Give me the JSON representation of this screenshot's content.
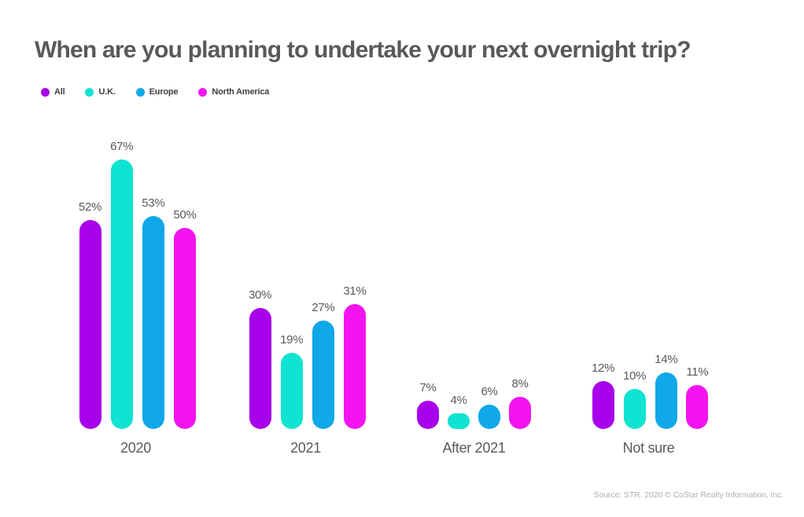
{
  "title": "When are you planning to undertake your next overnight trip?",
  "source": "Source: STR. 2020 © CoStar Realty Information, Inc.",
  "colors": {
    "background": "#FFFFFF",
    "title_text": "#58595B",
    "label_text": "#58595B",
    "legend_text": "#414042",
    "source_text": "#AEB0B3",
    "all": "#A800EB",
    "uk": "#10E3D2",
    "europe": "#10A8E8",
    "north_america": "#F414F0"
  },
  "chart_data": {
    "type": "bar",
    "title": "When are you planning to undertake your next overnight trip?",
    "categories": [
      "2020",
      "2021",
      "After 2021",
      "Not sure"
    ],
    "series": [
      {
        "name": "All",
        "color": "#A800EB",
        "values": [
          52,
          30,
          7,
          12
        ]
      },
      {
        "name": "U.K.",
        "color": "#10E3D2",
        "values": [
          67,
          19,
          4,
          10
        ]
      },
      {
        "name": "Europe",
        "color": "#10A8E8",
        "values": [
          53,
          27,
          6,
          14
        ]
      },
      {
        "name": "North America",
        "color": "#F414F0",
        "values": [
          50,
          31,
          8,
          11
        ]
      }
    ],
    "value_suffix": "%",
    "xlabel": "",
    "ylabel": "",
    "ylim": [
      0,
      70
    ],
    "grid": false,
    "axes_visible": false,
    "data_labels": true,
    "bar_style": "rounded-capsule",
    "legend_position": "top-left"
  }
}
